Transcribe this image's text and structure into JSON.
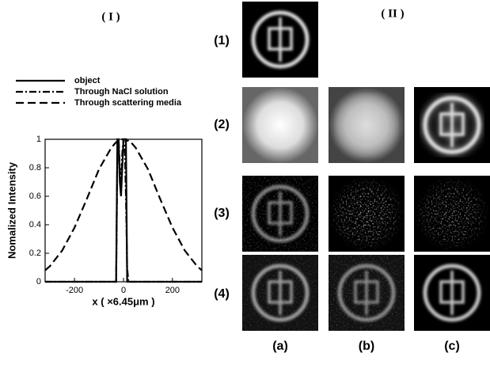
{
  "chart_data": {
    "type": "line",
    "xlabel": "x ( ×6.45μm )",
    "ylabel": "Nomalized Intensity",
    "x": [
      -320,
      -300,
      -250,
      -200,
      -150,
      -100,
      -50,
      -30,
      -25,
      -20,
      -15,
      -10,
      -5,
      0,
      5,
      10,
      15,
      20,
      25,
      30,
      50,
      100,
      150,
      200,
      250,
      300,
      320
    ],
    "series": [
      {
        "name": "object",
        "color": "#000000",
        "style": "solid",
        "values": [
          0,
          0,
          0,
          0,
          0,
          0,
          0,
          0,
          1,
          1,
          0.7,
          0.6,
          0.8,
          1,
          1,
          1,
          0,
          0,
          0,
          0,
          0,
          0,
          0,
          0,
          0,
          0,
          0
        ]
      },
      {
        "name": "Through NaCl solution",
        "color": "#000000",
        "style": "dashdot",
        "values": [
          0,
          0,
          0,
          0,
          0,
          0,
          0,
          0,
          0.9,
          1,
          0.8,
          0.65,
          0.9,
          1,
          0.95,
          0.6,
          0.1,
          0,
          0,
          0,
          0,
          0,
          0,
          0,
          0,
          0,
          0
        ]
      },
      {
        "name": "Through scattering media",
        "color": "#000000",
        "style": "dashed",
        "values": [
          0.08,
          0.11,
          0.22,
          0.38,
          0.58,
          0.79,
          0.94,
          0.98,
          0.98,
          0.99,
          0.99,
          1,
          1,
          1,
          1,
          1,
          0.99,
          0.99,
          0.98,
          0.98,
          0.94,
          0.79,
          0.58,
          0.38,
          0.22,
          0.11,
          0.08
        ]
      }
    ],
    "xlim": [
      -320,
      320
    ],
    "xticks": [
      -200,
      0,
      200
    ],
    "ylim": [
      0,
      1
    ],
    "yticks": [
      0,
      0.2,
      0.4,
      0.6,
      0.8,
      1
    ],
    "grid": false,
    "legend": "top-left"
  },
  "panel_titles": [
    "( I )",
    "( II )"
  ],
  "row_labels": [
    "(1)",
    "(2)",
    "(3)",
    "(4)"
  ],
  "column_labels": [
    "(a)",
    "(b)",
    "(c)"
  ]
}
